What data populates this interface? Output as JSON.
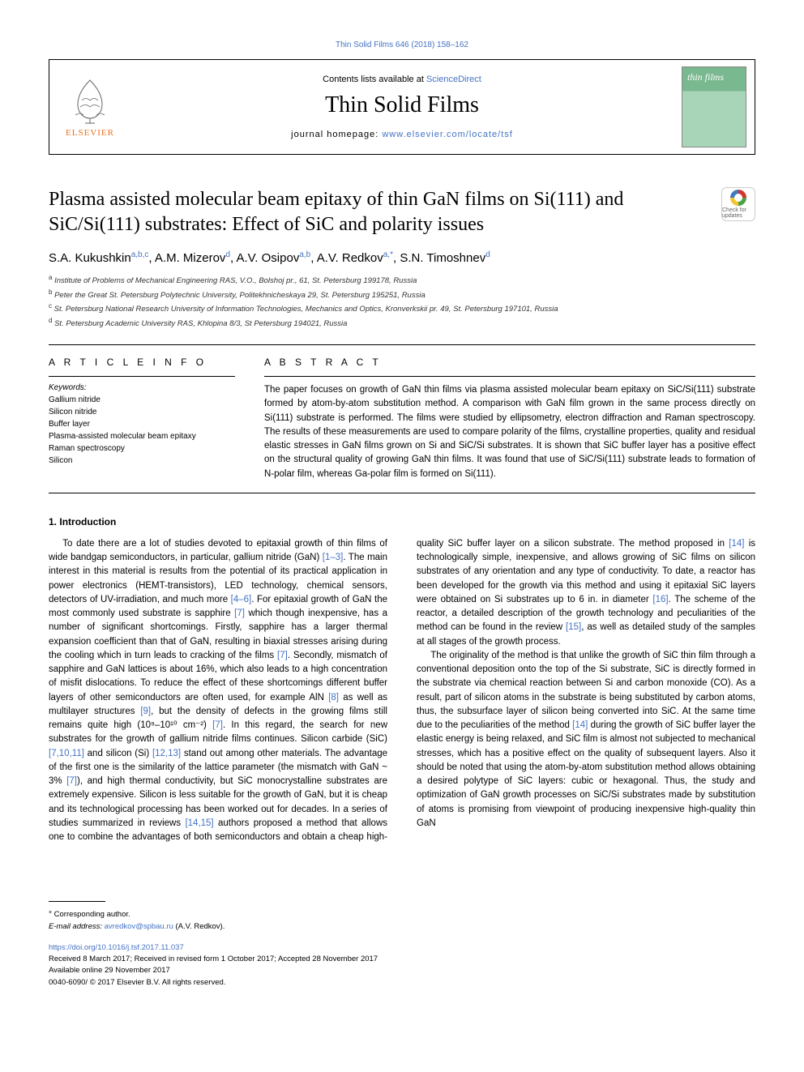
{
  "top_link": {
    "text": "Thin Solid Films 646 (2018) 158–162",
    "color": "#4472c4"
  },
  "header": {
    "publisher": "ELSEVIER",
    "contents_prefix": "Contents lists available at ",
    "contents_link": "ScienceDirect",
    "journal_name": "Thin Solid Films",
    "homepage_prefix": "journal homepage: ",
    "homepage_link": "www.elsevier.com/locate/tsf",
    "cover_text": "thin films"
  },
  "article": {
    "title": "Plasma assisted molecular beam epitaxy of thin GaN films on Si(111) and SiC/Si(111) substrates: Effect of SiC and polarity issues",
    "crossmark_label": "Check for updates",
    "authors_html": "S.A. Kukushkin|a,b,c|, A.M. Mizerov|d|, A.V. Osipov|a,b|, A.V. Redkov|a,*|, S.N. Timoshnev|d|",
    "affiliations": [
      {
        "sup": "a",
        "text": "Institute of Problems of Mechanical Engineering RAS, V.O., Bolshoj pr., 61, St. Petersburg 199178, Russia"
      },
      {
        "sup": "b",
        "text": "Peter the Great St. Petersburg Polytechnic University, Politekhnicheskaya 29, St. Petersburg 195251, Russia"
      },
      {
        "sup": "c",
        "text": "St. Petersburg National Research University of Information Technologies, Mechanics and Optics, Kronverkskii pr. 49, St. Petersburg 197101, Russia"
      },
      {
        "sup": "d",
        "text": "St. Petersburg Academic University RAS, Khlopina 8/3, St Petersburg 194021, Russia"
      }
    ]
  },
  "info": {
    "heading": "A R T I C L E  I N F O",
    "keywords_label": "Keywords:",
    "keywords": [
      "Gallium nitride",
      "Silicon nitride",
      "Buffer layer",
      "Plasma-assisted molecular beam epitaxy",
      "Raman spectroscopy",
      "Silicon"
    ]
  },
  "abstract": {
    "heading": "A B S T R A C T",
    "text": "The paper focuses on growth of GaN thin films via plasma assisted molecular beam epitaxy on SiC/Si(111) substrate formed by atom-by-atom substitution method. A comparison with GaN film grown in the same process directly on Si(111) substrate is performed. The films were studied by ellipsometry, electron diffraction and Raman spectroscopy. The results of these measurements are used to compare polarity of the films, crystalline properties, quality and residual elastic stresses in GaN films grown on Si and SiC/Si substrates. It is shown that SiC buffer layer has a positive effect on the structural quality of growing GaN thin films. It was found that use of SiC/Si(111) substrate leads to formation of N-polar film, whereas Ga-polar film is formed on Si(111)."
  },
  "body": {
    "section_number": "1.",
    "section_title": "Introduction",
    "paragraphs": [
      "To date there are a lot of studies devoted to epitaxial growth of thin films of wide bandgap semiconductors, in particular, gallium nitride (GaN) [1–3]. The main interest in this material is results from the potential of its practical application in power electronics (HEMT-transistors), LED technology, chemical sensors, detectors of UV-irradiation, and much more [4–6]. For epitaxial growth of GaN the most commonly used substrate is sapphire [7] which though inexpensive, has a number of significant shortcomings. Firstly, sapphire has a larger thermal expansion coefficient than that of GaN, resulting in biaxial stresses arising during the cooling which in turn leads to cracking of the films [7]. Secondly, mismatch of sapphire and GaN lattices is about 16%, which also leads to a high concentration of misfit dislocations. To reduce the effect of these shortcomings different buffer layers of other semiconductors are often used, for example AlN [8] as well as multilayer structures [9], but the density of defects in the growing films still remains quite high (10⁹–10¹⁰ cm⁻²) [7]. In this regard, the search for new substrates for the growth of gallium nitride films continues. Silicon carbide (SiC) [7,10,11] and silicon (Si) [12,13] stand out among other materials. The advantage of the first one is the similarity of the lattice parameter (the mismatch with GaN ~ 3% [7]), and high thermal conductivity, but SiC monocrystalline substrates are extremely expensive. Silicon is less suitable for the growth of GaN, but it is cheap and its technological processing has been worked out for decades. In a series of studies summarized in reviews [14,15] authors proposed a method that allows one to combine the advantages of both semiconductors and obtain a cheap high-quality SiC buffer layer on a silicon substrate. The method proposed in [14] is technologically simple, inexpensive, and allows growing of SiC films on silicon substrates of any orientation and any type of conductivity. To date, a reactor has been developed for the growth via this method and using it epitaxial SiC layers were obtained on Si substrates up to 6 in. in diameter [16]. The scheme of the reactor, a detailed description of the growth technology and peculiarities of the method can be found in the review [15], as well as detailed study of the samples at all stages of the growth process.",
      "The originality of the method is that unlike the growth of SiC thin film through a conventional deposition onto the top of the Si substrate, SiC is directly formed in the substrate via chemical reaction between Si and carbon monoxide (CO). As a result, part of silicon atoms in the substrate is being substituted by carbon atoms, thus, the subsurface layer of silicon being converted into SiC. At the same time due to the peculiarities of the method [14] during the growth of SiC buffer layer the elastic energy is being relaxed, and SiC film is almost not subjected to mechanical stresses, which has a positive effect on the quality of subsequent layers. Also it should be noted that using the atom-by-atom substitution method allows obtaining a desired polytype of SiC layers: cubic or hexagonal. Thus, the study and optimization of GaN growth processes on SiC/Si substrates made by substitution of atoms is promising from viewpoint of producing inexpensive high-quality thin GaN"
    ],
    "ref_patterns": [
      "[1–3]",
      "[4–6]",
      "[7]",
      "[8]",
      "[9]",
      "[7,10,11]",
      "[12,13]",
      "[14,15]",
      "[14]",
      "[16]",
      "[15]"
    ]
  },
  "footer": {
    "corresponding": "Corresponding author.",
    "email_label": "E-mail address: ",
    "email": "avredkov@spbau.ru",
    "email_suffix": " (A.V. Redkov).",
    "doi": "https://doi.org/10.1016/j.tsf.2017.11.037",
    "received": "Received 8 March 2017; Received in revised form 1 October 2017; Accepted 28 November 2017",
    "available": "Available online 29 November 2017",
    "copyright": "0040-6090/ © 2017 Elsevier B.V. All rights reserved."
  },
  "colors": {
    "link": "#4472c4",
    "text": "#000000",
    "cover_top": "#7ab890",
    "cover_bottom": "#a8d4b8",
    "elsevier_orange": "#e9711c"
  }
}
